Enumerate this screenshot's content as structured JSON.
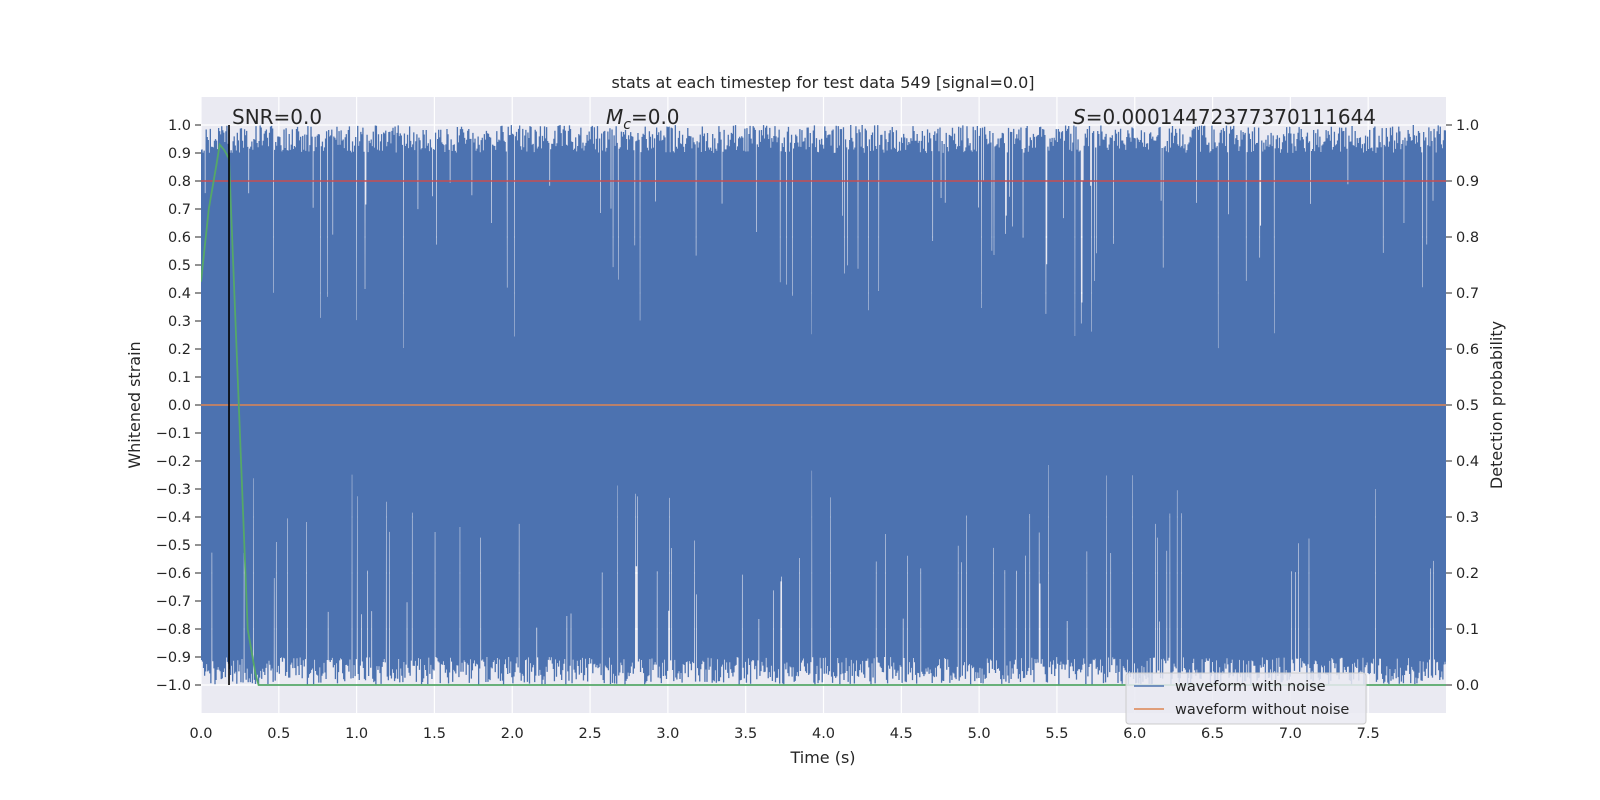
{
  "chart_data": {
    "type": "line",
    "title": "stats at each timestep for test data 549 [signal=0.0]",
    "xlabel": "Time (s)",
    "ylabel": "Whitened strain",
    "y2label": "Detection probability",
    "xlim": [
      0.0,
      8.0
    ],
    "ylim": [
      -1.1,
      1.1
    ],
    "y2lim": [
      -0.05,
      1.05
    ],
    "x_ticks": [
      "0.0",
      "0.5",
      "1.0",
      "1.5",
      "2.0",
      "2.5",
      "3.0",
      "3.5",
      "4.0",
      "4.5",
      "5.0",
      "5.5",
      "6.0",
      "6.5",
      "7.0",
      "7.5"
    ],
    "y_ticks": [
      "1.0",
      "0.9",
      "0.8",
      "0.7",
      "0.6",
      "0.5",
      "0.4",
      "0.3",
      "0.2",
      "0.1",
      "0.0",
      "−0.1",
      "−0.2",
      "−0.3",
      "−0.4",
      "−0.5",
      "−0.6",
      "−0.7",
      "−0.8",
      "−0.9",
      "−1.0"
    ],
    "y2_ticks": [
      "1.0",
      "0.9",
      "0.8",
      "0.7",
      "0.6",
      "0.5",
      "0.4",
      "0.3",
      "0.2",
      "0.1",
      "0.0"
    ],
    "grid": true,
    "legend_position": "bottom-right",
    "annotations": {
      "snr": "SNR=0.0",
      "mc_symbol": "M",
      "mc_subscript": "c",
      "mc_value": "=0.0",
      "s_symbol": "S",
      "s_value": "=0.00014472377370111644"
    },
    "marker_line_x": 0.18,
    "threshold": 0.9,
    "series": [
      {
        "name": "waveform with noise",
        "color": "#4c72b0",
        "note": "dense noise fluctuating between about -1.0 and 1.0 over the full time range"
      },
      {
        "name": "waveform without noise",
        "color": "#dd8452",
        "values_constant": 0.0
      },
      {
        "color": "#55a868",
        "axis": "right",
        "x": [
          0.0,
          0.05,
          0.1,
          0.12,
          0.15,
          0.18,
          0.2,
          0.25,
          0.3,
          0.35,
          0.37,
          0.4,
          1.0,
          2.0,
          3.0,
          4.0,
          5.0,
          6.0,
          7.0,
          8.0
        ],
        "values": [
          0.72,
          0.85,
          0.93,
          0.965,
          0.955,
          0.94,
          0.8,
          0.45,
          0.1,
          0.02,
          0.0,
          0.0,
          0.0,
          0.0,
          0.0,
          0.0,
          0.0,
          0.0,
          0.0,
          0.0
        ]
      },
      {
        "color": "#c44e52",
        "axis": "right",
        "values_constant": 0.9
      }
    ],
    "colors": {
      "background": "#eaeaf2",
      "grid": "#ffffff",
      "noise": "#4c72b0",
      "clean": "#dd8452",
      "probability": "#55a868",
      "threshold": "#c44e52",
      "marker": "#000000"
    }
  }
}
